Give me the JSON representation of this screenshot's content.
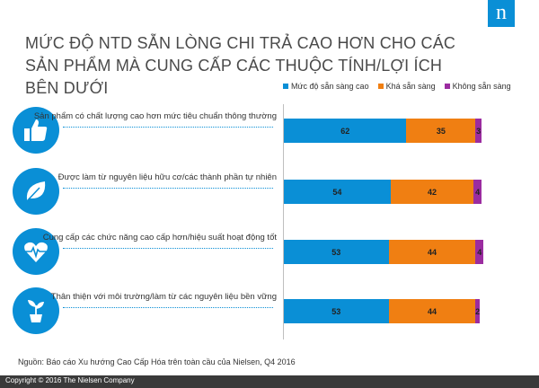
{
  "brand": {
    "logo_letter": "n"
  },
  "title": "MỨC ĐỘ NTD SẴN LÒNG CHI TRẢ CAO HƠN CHO CÁC SẢN PHẨM MÀ CUNG CẤP CÁC THUỘC TÍNH/LỢI ÍCH BÊN DƯỚI",
  "source": "Nguồn: Báo cáo Xu hướng Cao Cấp Hóa trên toàn cầu của Nielsen, Q4 2016",
  "copyright": "Copyright © 2016 The Nielsen Company",
  "colors": {
    "brand_blue": "#0a8fd6",
    "high": "#0a8fd6",
    "medium": "#f07f12",
    "low": "#9b2ca0"
  },
  "chart_data": {
    "type": "bar",
    "orientation": "horizontal",
    "stacked": true,
    "categories": [
      "Sản phẩm có chất lượng cao hơn mức tiêu chuẩn thông thường",
      "Được làm từ nguyên liệu hữu cơ/các thành phần tự nhiên",
      "Cung cấp các chức năng cao cấp hơn/hiệu suất hoạt động tốt",
      "Thân thiện với môi trường/làm từ các nguyên liệu bền vững"
    ],
    "icons": [
      "thumbs-up-icon",
      "leaf-icon",
      "heart-pulse-icon",
      "plant-pot-icon"
    ],
    "series": [
      {
        "name": "Mức độ sẵn sàng cao",
        "color": "#0a8fd6",
        "values": [
          62,
          54,
          53,
          53
        ]
      },
      {
        "name": "Khá sẵn sàng",
        "color": "#f07f12",
        "values": [
          35,
          42,
          44,
          44
        ]
      },
      {
        "name": "Không sẵn sàng",
        "color": "#9b2ca0",
        "values": [
          3,
          4,
          4,
          2
        ]
      }
    ],
    "xlim": [
      0,
      100
    ],
    "legend_position": "top",
    "grid": false
  }
}
